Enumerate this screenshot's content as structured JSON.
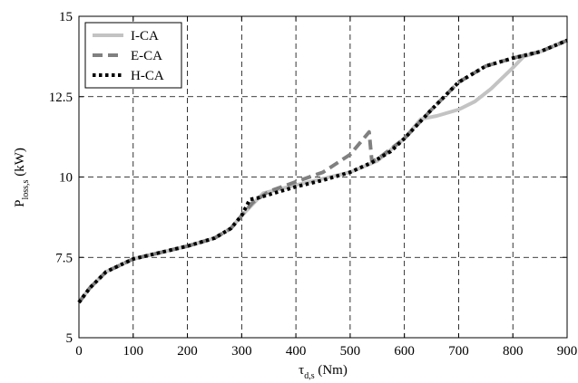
{
  "chart_data": {
    "type": "line",
    "xlabel": {
      "main": "τ",
      "sub": "d,s",
      "unit": " (Nm)"
    },
    "ylabel": {
      "main": "P",
      "sub": "loss,s",
      "unit": " (kW)"
    },
    "xlim": [
      0,
      900
    ],
    "ylim": [
      5,
      15
    ],
    "xticks": [
      0,
      100,
      200,
      300,
      400,
      500,
      600,
      700,
      800,
      900
    ],
    "xtick_labels": [
      "0",
      "100",
      "200",
      "300",
      "400",
      "500",
      "600",
      "700",
      "800",
      "900"
    ],
    "yticks": [
      5,
      7.5,
      10,
      12.5,
      15
    ],
    "ytick_labels": [
      "5",
      "7.5",
      "10",
      "12.5",
      "15"
    ],
    "grid": true,
    "legend": "top-left",
    "series": [
      {
        "name": "I-CA",
        "color": "#c3c3c3",
        "style": "solid",
        "points": [
          [
            0,
            6.1
          ],
          [
            20,
            6.55
          ],
          [
            50,
            7.05
          ],
          [
            100,
            7.45
          ],
          [
            150,
            7.65
          ],
          [
            200,
            7.85
          ],
          [
            250,
            8.1
          ],
          [
            280,
            8.4
          ],
          [
            300,
            8.8
          ],
          [
            320,
            9.15
          ],
          [
            340,
            9.5
          ],
          [
            400,
            9.75
          ],
          [
            450,
            9.95
          ],
          [
            500,
            10.15
          ],
          [
            550,
            10.5
          ],
          [
            600,
            11.2
          ],
          [
            630,
            11.8
          ],
          [
            660,
            11.9
          ],
          [
            700,
            12.1
          ],
          [
            730,
            12.35
          ],
          [
            760,
            12.75
          ],
          [
            800,
            13.4
          ],
          [
            820,
            13.75
          ],
          [
            850,
            13.9
          ],
          [
            880,
            14.1
          ],
          [
            900,
            14.25
          ]
        ]
      },
      {
        "name": "E-CA",
        "color": "#808080",
        "style": "dashed",
        "points": [
          [
            0,
            6.1
          ],
          [
            20,
            6.55
          ],
          [
            50,
            7.05
          ],
          [
            100,
            7.45
          ],
          [
            150,
            7.65
          ],
          [
            200,
            7.85
          ],
          [
            250,
            8.1
          ],
          [
            280,
            8.4
          ],
          [
            300,
            8.8
          ],
          [
            320,
            9.2
          ],
          [
            350,
            9.55
          ],
          [
            400,
            9.85
          ],
          [
            450,
            10.15
          ],
          [
            500,
            10.7
          ],
          [
            535,
            11.4
          ],
          [
            540,
            10.5
          ],
          [
            550,
            10.55
          ],
          [
            600,
            11.2
          ],
          [
            650,
            12.1
          ],
          [
            700,
            12.95
          ],
          [
            750,
            13.45
          ],
          [
            800,
            13.7
          ],
          [
            850,
            13.9
          ],
          [
            900,
            14.25
          ]
        ]
      },
      {
        "name": "H-CA",
        "color": "#000000",
        "style": "dotted",
        "points": [
          [
            0,
            6.1
          ],
          [
            20,
            6.55
          ],
          [
            50,
            7.05
          ],
          [
            100,
            7.45
          ],
          [
            150,
            7.65
          ],
          [
            200,
            7.85
          ],
          [
            250,
            8.1
          ],
          [
            280,
            8.4
          ],
          [
            300,
            8.8
          ],
          [
            315,
            9.3
          ],
          [
            330,
            9.35
          ],
          [
            350,
            9.45
          ],
          [
            400,
            9.7
          ],
          [
            450,
            9.9
          ],
          [
            500,
            10.15
          ],
          [
            540,
            10.45
          ],
          [
            575,
            10.8
          ],
          [
            600,
            11.2
          ],
          [
            650,
            12.1
          ],
          [
            700,
            12.95
          ],
          [
            750,
            13.45
          ],
          [
            800,
            13.7
          ],
          [
            850,
            13.9
          ],
          [
            900,
            14.25
          ]
        ]
      }
    ]
  }
}
